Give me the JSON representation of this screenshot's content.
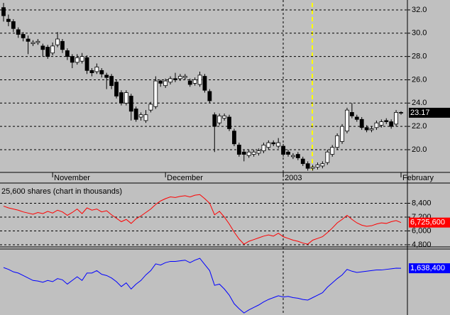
{
  "chart_data": [
    {
      "type": "candlestick",
      "categories": [
        null,
        null,
        null,
        null,
        null,
        null,
        null,
        null,
        null,
        null,
        "November",
        null,
        null,
        null,
        null,
        null,
        null,
        null,
        null,
        null,
        null,
        null,
        null,
        null,
        null,
        null,
        null,
        null,
        null,
        null,
        null,
        null,
        null,
        "December",
        null,
        null,
        null,
        null,
        null,
        null,
        null,
        null,
        null,
        null,
        null,
        null,
        null,
        null,
        null,
        null,
        null,
        null,
        null,
        null,
        null,
        null,
        null,
        "2003",
        null,
        null,
        null,
        null,
        null,
        null,
        null,
        null,
        null,
        null,
        null,
        null,
        null,
        null,
        null,
        null,
        null,
        null,
        null,
        null,
        null,
        null,
        null,
        "February"
      ],
      "open": [
        32.2,
        31.2,
        31.0,
        30.3,
        29.9,
        29.5,
        29.1,
        29.2,
        28.9,
        28.8,
        28.3,
        29.0,
        29.3,
        28.5,
        28.0,
        27.5,
        27.6,
        27.9,
        26.8,
        26.7,
        26.8,
        26.4,
        26.3,
        25.8,
        24.9,
        24.0,
        24.6,
        23.5,
        22.8,
        22.5,
        23.4,
        23.7,
        25.9,
        25.5,
        25.8,
        26.1,
        26.1,
        26.2,
        25.9,
        25.7,
        25.6,
        26.3,
        25.0,
        23.0,
        22.3,
        22.7,
        22.8,
        21.6,
        20.4,
        19.8,
        19.5,
        19.6,
        19.7,
        19.9,
        20.2,
        20.6,
        20.3,
        20.3,
        19.8,
        19.4,
        19.6,
        19.2,
        18.8,
        18.4,
        18.5,
        18.6,
        18.9,
        19.6,
        20.2,
        20.7,
        21.6,
        23.2,
        22.8,
        22.6,
        21.9,
        21.7,
        21.9,
        22.1,
        22.5,
        22.4,
        22.2,
        23.2
      ],
      "high": [
        32.6,
        31.6,
        31.2,
        30.5,
        30.1,
        29.8,
        29.4,
        29.5,
        29.1,
        29.0,
        29.2,
        30.1,
        29.5,
        28.7,
        28.2,
        28.2,
        28.3,
        28.1,
        27.0,
        27.4,
        27.0,
        26.6,
        26.5,
        26.0,
        25.1,
        25.1,
        24.8,
        23.7,
        23.2,
        23.4,
        24.1,
        26.3,
        26.0,
        26.1,
        26.3,
        26.6,
        26.5,
        26.5,
        26.1,
        26.2,
        26.7,
        26.5,
        25.2,
        23.2,
        23.1,
        23.1,
        23.0,
        21.8,
        20.6,
        20.0,
        20.0,
        20.0,
        20.1,
        20.6,
        20.8,
        20.8,
        21.0,
        20.5,
        20.0,
        19.7,
        19.8,
        19.4,
        19.0,
        18.7,
        18.9,
        19.0,
        20.0,
        20.4,
        21.4,
        22.2,
        23.6,
        24.0,
        23.0,
        22.8,
        22.1,
        22.0,
        22.5,
        22.6,
        22.7,
        22.6,
        23.4,
        23.3
      ],
      "low": [
        31.0,
        30.6,
        30.1,
        29.6,
        29.3,
        28.2,
        28.9,
        29.0,
        28.0,
        27.8,
        28.1,
        28.8,
        28.3,
        27.7,
        27.0,
        27.3,
        27.4,
        26.5,
        26.3,
        26.5,
        26.2,
        25.2,
        25.2,
        24.4,
        23.8,
        23.8,
        22.5,
        22.4,
        22.5,
        22.3,
        23.2,
        23.5,
        25.4,
        25.3,
        25.6,
        25.8,
        25.9,
        26.0,
        25.4,
        25.5,
        25.4,
        24.9,
        24.0,
        19.8,
        22.1,
        22.5,
        21.6,
        20.3,
        19.4,
        19.0,
        19.3,
        19.4,
        19.5,
        19.7,
        20.0,
        20.3,
        20.1,
        19.4,
        19.4,
        19.2,
        19.1,
        18.6,
        18.2,
        18.2,
        18.3,
        18.4,
        18.7,
        19.4,
        20.0,
        20.5,
        21.4,
        22.7,
        22.4,
        21.7,
        21.5,
        21.5,
        21.7,
        21.9,
        22.2,
        21.8,
        22.0,
        23.0
      ],
      "close": [
        31.5,
        31.0,
        30.4,
        29.9,
        29.6,
        29.3,
        29.2,
        29.3,
        28.6,
        28.0,
        28.9,
        29.5,
        28.6,
        28.0,
        27.5,
        27.9,
        28.0,
        26.8,
        26.6,
        27.1,
        26.5,
        26.2,
        25.5,
        24.6,
        24.0,
        24.9,
        23.3,
        22.6,
        23.0,
        23.0,
        23.9,
        25.9,
        25.7,
        25.9,
        26.1,
        26.0,
        26.3,
        26.3,
        25.6,
        26.0,
        26.4,
        25.1,
        24.2,
        22.0,
        22.9,
        22.9,
        21.8,
        20.5,
        19.6,
        19.6,
        19.8,
        19.8,
        19.9,
        20.4,
        20.6,
        20.5,
        20.6,
        19.6,
        19.6,
        19.5,
        19.3,
        18.8,
        18.4,
        18.5,
        18.7,
        18.8,
        19.8,
        20.2,
        21.2,
        22.0,
        23.4,
        22.9,
        22.6,
        21.9,
        21.7,
        21.8,
        22.3,
        22.4,
        22.4,
        22.0,
        23.2,
        23.17
      ],
      "ylim": [
        18.05,
        32.85
      ],
      "yticks": [
        {
          "value": 20,
          "label": "20.0"
        },
        {
          "value": 22,
          "label": "22.0"
        },
        {
          "value": 24,
          "label": "24.0"
        },
        {
          "value": 26,
          "label": "26.0"
        },
        {
          "value": 28,
          "label": "28.0"
        },
        {
          "value": 30,
          "label": "30.0"
        },
        {
          "value": 32,
          "label": "32.0"
        }
      ],
      "grid": true,
      "up_color": "#ffffff",
      "down_color": "#000000"
    },
    {
      "type": "line",
      "title": "25,600 shares (chart in thousands)",
      "series": [
        {
          "color": "#ff0000",
          "values": [
            8150,
            8000,
            7900,
            7800,
            7650,
            7550,
            7450,
            7600,
            7500,
            7700,
            7550,
            7800,
            7650,
            7350,
            7600,
            7900,
            7500,
            8000,
            7800,
            7900,
            7650,
            7750,
            7400,
            7100,
            6800,
            7000,
            6650,
            7050,
            7300,
            7600,
            7900,
            8300,
            8600,
            8800,
            8950,
            8900,
            9000,
            9050,
            8950,
            9100,
            9150,
            8800,
            8400,
            7400,
            7700,
            7200,
            6600,
            5900,
            5300,
            4850,
            5100,
            5250,
            5400,
            5550,
            5650,
            5550,
            5800,
            5500,
            5350,
            5200,
            5100,
            4950,
            4850,
            5200,
            5350,
            5500,
            5850,
            6250,
            6700,
            7000,
            7350,
            7000,
            6700,
            6500,
            6400,
            6450,
            6600,
            6700,
            6650,
            6800,
            6900,
            6725.6
          ],
          "value_labels": [
            null,
            null,
            null,
            null,
            null,
            null,
            null,
            null,
            null,
            null,
            null,
            null,
            null,
            null,
            null,
            null,
            null,
            null,
            null,
            null,
            null,
            null,
            null,
            null,
            null,
            null,
            null,
            null,
            null,
            null,
            null,
            null,
            null,
            null,
            null,
            null,
            null,
            null,
            null,
            null,
            null,
            null,
            null,
            null,
            null,
            null,
            null,
            null,
            null,
            null,
            null,
            null,
            null,
            null,
            null,
            null,
            null,
            null,
            null,
            null,
            null,
            null,
            null,
            null,
            null,
            null,
            null,
            null,
            null,
            null,
            null,
            null,
            null,
            null,
            null,
            null,
            null,
            null,
            null,
            null,
            null,
            "6,725,600"
          ]
        }
      ],
      "ylim": [
        4615,
        9907
      ],
      "yticks": [
        {
          "value": 4800,
          "label": "4,800"
        },
        {
          "value": 6000,
          "label": "6,000"
        },
        {
          "value": 7200,
          "label": "7,200"
        },
        {
          "value": 8400,
          "label": "8,400"
        }
      ],
      "grid": true
    },
    {
      "type": "line",
      "series": [
        {
          "color": "#0000ff",
          "values": [
            1650000,
            1620000,
            1580000,
            1560000,
            1520000,
            1480000,
            1440000,
            1430000,
            1410000,
            1440000,
            1420000,
            1470000,
            1450000,
            1380000,
            1440000,
            1500000,
            1440000,
            1560000,
            1560000,
            1600000,
            1540000,
            1520000,
            1480000,
            1420000,
            1340000,
            1400000,
            1300000,
            1380000,
            1440000,
            1530000,
            1600000,
            1710000,
            1690000,
            1730000,
            1750000,
            1750000,
            1760000,
            1770000,
            1730000,
            1770000,
            1800000,
            1700000,
            1600000,
            1360000,
            1380000,
            1300000,
            1200000,
            1060000,
            980000,
            910000,
            960000,
            1000000,
            1040000,
            1090000,
            1130000,
            1160000,
            1190000,
            1170000,
            1180000,
            1160000,
            1150000,
            1130000,
            1120000,
            1160000,
            1200000,
            1240000,
            1330000,
            1400000,
            1470000,
            1530000,
            1620000,
            1590000,
            1570000,
            1580000,
            1590000,
            1600000,
            1610000,
            1610000,
            1620000,
            1630000,
            1640000,
            1638400
          ],
          "value_labels": [
            null,
            null,
            null,
            null,
            null,
            null,
            null,
            null,
            null,
            null,
            null,
            null,
            null,
            null,
            null,
            null,
            null,
            null,
            null,
            null,
            null,
            null,
            null,
            null,
            null,
            null,
            null,
            null,
            null,
            null,
            null,
            null,
            null,
            null,
            null,
            null,
            null,
            null,
            null,
            null,
            null,
            null,
            null,
            null,
            null,
            null,
            null,
            null,
            null,
            null,
            null,
            null,
            null,
            null,
            null,
            null,
            null,
            null,
            null,
            null,
            null,
            null,
            null,
            null,
            null,
            null,
            null,
            null,
            null,
            null,
            null,
            null,
            null,
            null,
            null,
            null,
            null,
            null,
            null,
            null,
            null,
            "1,638,400"
          ]
        }
      ],
      "ylim": [
        900000,
        1940000
      ],
      "grid": false
    }
  ]
}
